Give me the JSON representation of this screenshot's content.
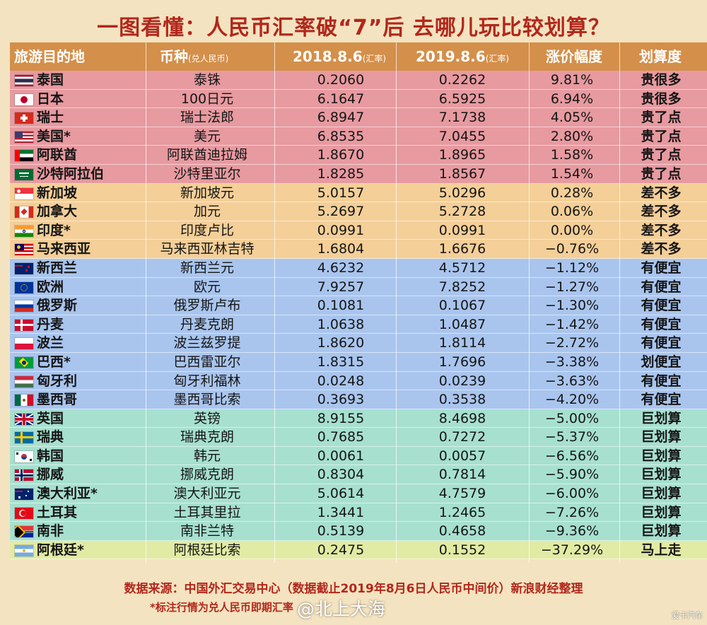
{
  "title": "一图看懂：人民币汇率破“7”后 去哪儿玩比较划算？",
  "header": {
    "country": "旅游目的地",
    "currency": "币种",
    "currency_note": "(兑人民币)",
    "rate_2018": "2018.8.6",
    "rate_2018_note": "(汇率)",
    "rate_2019": "2019.8.6",
    "rate_2019_note": "(汇率)",
    "change": "涨价幅度",
    "verdict": "划算度"
  },
  "rows": [
    {
      "country": "泰国",
      "flag": "th-flag-icon",
      "currency": "泰铢",
      "r2018": "0.2060",
      "r2019": "0.2262",
      "change": "9.81%",
      "verdict": "贵很多",
      "group": "g1"
    },
    {
      "country": "日本",
      "flag": "jp-flag-icon",
      "currency": "100日元",
      "r2018": "6.1647",
      "r2019": "6.5925",
      "change": "6.94%",
      "verdict": "贵很多",
      "group": "g1"
    },
    {
      "country": "瑞士",
      "flag": "ch-flag-icon",
      "currency": "瑞士法郎",
      "r2018": "6.8947",
      "r2019": "7.1738",
      "change": "4.05%",
      "verdict": "贵了点",
      "group": "g1"
    },
    {
      "country": "美国*",
      "flag": "us-flag-icon",
      "currency": "美元",
      "r2018": "6.8535",
      "r2019": "7.0455",
      "change": "2.80%",
      "verdict": "贵了点",
      "group": "g1"
    },
    {
      "country": "阿联酋",
      "flag": "ae-flag-icon",
      "currency": "阿联酋迪拉姆",
      "r2018": "1.8670",
      "r2019": "1.8965",
      "change": "1.58%",
      "verdict": "贵了点",
      "group": "g1"
    },
    {
      "country": "沙特阿拉伯",
      "flag": "sa-flag-icon",
      "currency": "沙特里亚尔",
      "r2018": "1.8285",
      "r2019": "1.8567",
      "change": "1.54%",
      "verdict": "贵了点",
      "group": "g1"
    },
    {
      "country": "新加坡",
      "flag": "sg-flag-icon",
      "currency": "新加坡元",
      "r2018": "5.0157",
      "r2019": "5.0296",
      "change": "0.28%",
      "verdict": "差不多",
      "group": "g2"
    },
    {
      "country": "加拿大",
      "flag": "ca-flag-icon",
      "currency": "加元",
      "r2018": "5.2697",
      "r2019": "5.2728",
      "change": "0.06%",
      "verdict": "差不多",
      "group": "g2"
    },
    {
      "country": "印度*",
      "flag": "in-flag-icon",
      "currency": "印度卢比",
      "r2018": "0.0991",
      "r2019": "0.0991",
      "change": "0.00%",
      "verdict": "差不多",
      "group": "g2"
    },
    {
      "country": "马来西亚",
      "flag": "my-flag-icon",
      "currency": "马来西亚林吉特",
      "r2018": "1.6804",
      "r2019": "1.6676",
      "change": "−0.76%",
      "verdict": "差不多",
      "group": "g2"
    },
    {
      "country": "新西兰",
      "flag": "nz-flag-icon",
      "currency": "新西兰元",
      "r2018": "4.6232",
      "r2019": "4.5712",
      "change": "−1.12%",
      "verdict": "有便宜",
      "group": "g3"
    },
    {
      "country": "欧洲",
      "flag": "eu-flag-icon",
      "currency": "欧元",
      "r2018": "7.9257",
      "r2019": "7.8252",
      "change": "−1.27%",
      "verdict": "有便宜",
      "group": "g3"
    },
    {
      "country": "俄罗斯",
      "flag": "ru-flag-icon",
      "currency": "俄罗斯卢布",
      "r2018": "0.1081",
      "r2019": "0.1067",
      "change": "−1.30%",
      "verdict": "有便宜",
      "group": "g3"
    },
    {
      "country": "丹麦",
      "flag": "dk-flag-icon",
      "currency": "丹麦克朗",
      "r2018": "1.0638",
      "r2019": "1.0487",
      "change": "−1.42%",
      "verdict": "有便宜",
      "group": "g3"
    },
    {
      "country": "波兰",
      "flag": "pl-flag-icon",
      "currency": "波兰兹罗提",
      "r2018": "1.8620",
      "r2019": "1.8114",
      "change": "−2.72%",
      "verdict": "有便宜",
      "group": "g3"
    },
    {
      "country": "巴西*",
      "flag": "br-flag-icon",
      "currency": "巴西雷亚尔",
      "r2018": "1.8315",
      "r2019": "1.7696",
      "change": "−3.38%",
      "verdict": "划便宜",
      "group": "g3"
    },
    {
      "country": "匈牙利",
      "flag": "hu-flag-icon",
      "currency": "匈牙利福林",
      "r2018": "0.0248",
      "r2019": "0.0239",
      "change": "−3.63%",
      "verdict": "有便宜",
      "group": "g3"
    },
    {
      "country": "墨西哥",
      "flag": "mx-flag-icon",
      "currency": "墨西哥比索",
      "r2018": "0.3693",
      "r2019": "0.3538",
      "change": "−4.20%",
      "verdict": "有便宜",
      "group": "g3"
    },
    {
      "country": "英国",
      "flag": "gb-flag-icon",
      "currency": "英镑",
      "r2018": "8.9155",
      "r2019": "8.4698",
      "change": "−5.00%",
      "verdict": "巨划算",
      "group": "g4"
    },
    {
      "country": "瑞典",
      "flag": "se-flag-icon",
      "currency": "瑞典克朗",
      "r2018": "0.7685",
      "r2019": "0.7272",
      "change": "−5.37%",
      "verdict": "巨划算",
      "group": "g4"
    },
    {
      "country": "韩国",
      "flag": "kr-flag-icon",
      "currency": "韩元",
      "r2018": "0.0061",
      "r2019": "0.0057",
      "change": "−6.56%",
      "verdict": "巨划算",
      "group": "g4"
    },
    {
      "country": "挪威",
      "flag": "no-flag-icon",
      "currency": "挪威克朗",
      "r2018": "0.8304",
      "r2019": "0.7814",
      "change": "−5.90%",
      "verdict": "巨划算",
      "group": "g4"
    },
    {
      "country": "澳大利亚*",
      "flag": "au-flag-icon",
      "currency": "澳大利亚元",
      "r2018": "5.0614",
      "r2019": "4.7579",
      "change": "−6.00%",
      "verdict": "巨划算",
      "group": "g4"
    },
    {
      "country": "土耳其",
      "flag": "tr-flag-icon",
      "currency": "土耳其里拉",
      "r2018": "1.3441",
      "r2019": "1.2465",
      "change": "−7.26%",
      "verdict": "巨划算",
      "group": "g4"
    },
    {
      "country": "南非",
      "flag": "za-flag-icon",
      "currency": "南非兰特",
      "r2018": "0.5139",
      "r2019": "0.4658",
      "change": "−9.36%",
      "verdict": "巨划算",
      "group": "g4"
    },
    {
      "country": "阿根廷*",
      "flag": "ar-flag-icon",
      "currency": "阿根廷比索",
      "r2018": "0.2475",
      "r2019": "0.1552",
      "change": "−37.29%",
      "verdict": "马上走",
      "group": "g5"
    }
  ],
  "footer": {
    "source": "数据来源：中国外汇交易中心（数据截止2019年8月6日人民币中间价）新浪财经整理",
    "note": "*标注行情为兑人民币即期汇率",
    "watermark": "@北上大海",
    "corner": "爱卡汽车"
  },
  "colors": {
    "title": "#b2271c",
    "header": "#d48f4a",
    "group_expensive": "#e79aa0",
    "group_same": "#f4cf98",
    "group_cheaper": "#a9c5ee",
    "group_bargain": "#a7e0cf",
    "group_go_now": "#e2eba4"
  }
}
